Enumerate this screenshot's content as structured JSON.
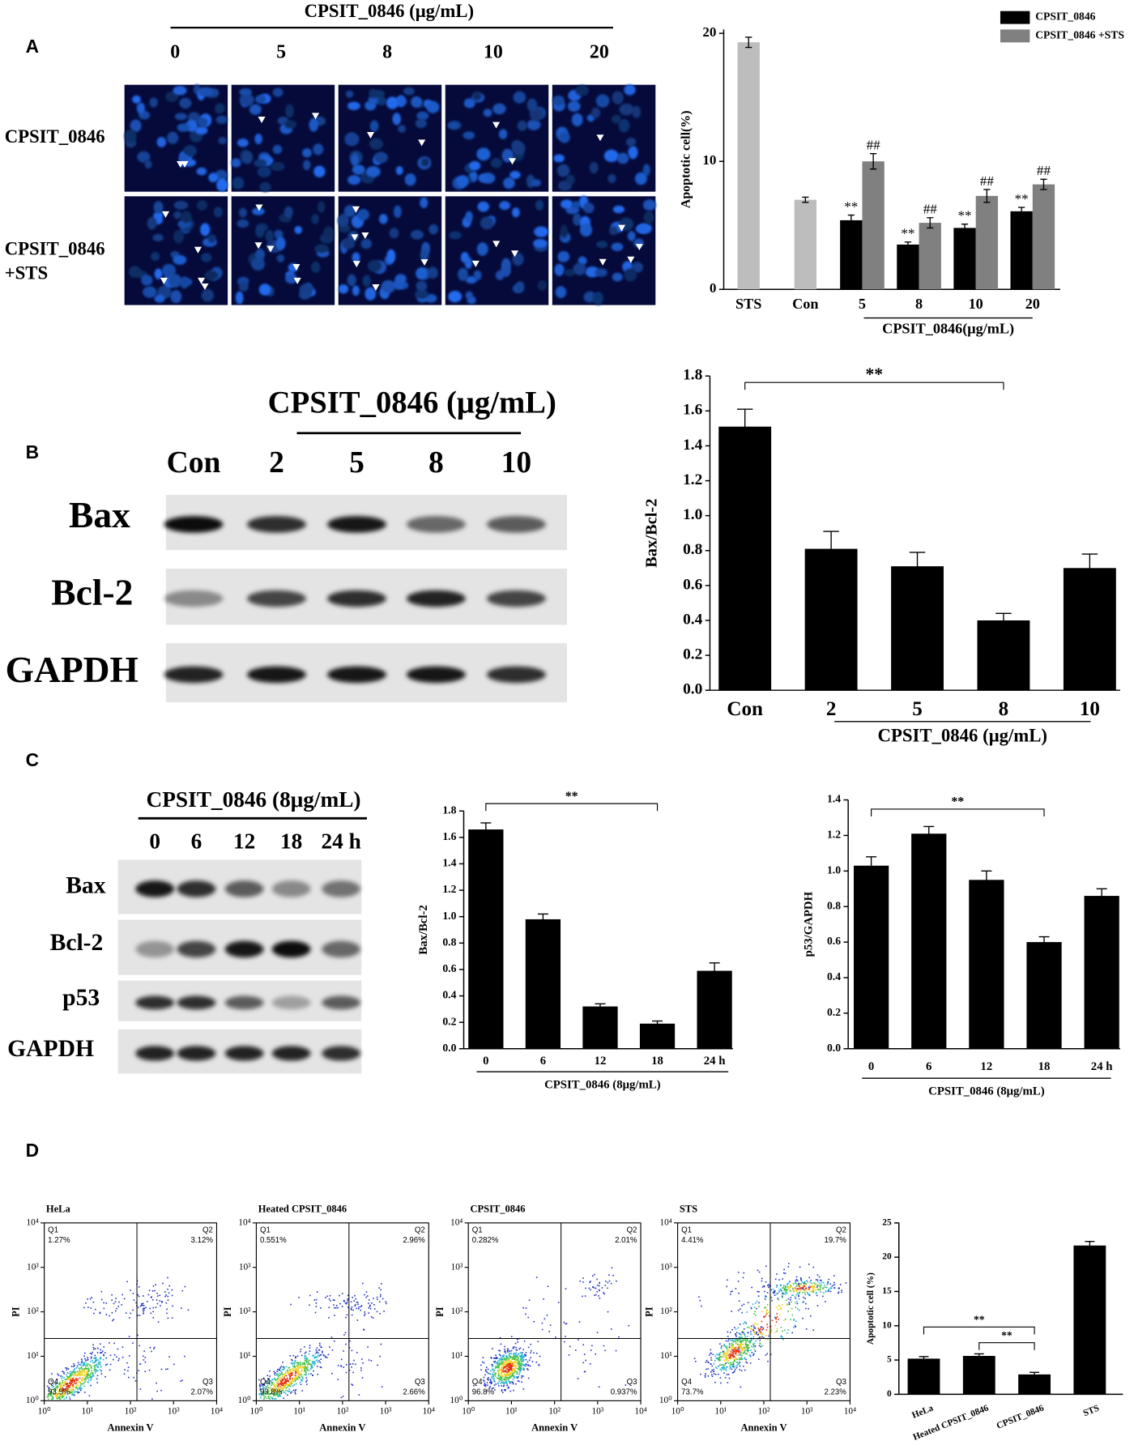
{
  "figure": {
    "panels": [
      "A",
      "B",
      "C",
      "D"
    ],
    "microscopy": {
      "title": "CPSIT_0846 (μg/mL)",
      "columns": [
        "0",
        "5",
        "8",
        "10",
        "20"
      ],
      "rows": [
        [
          "CPSIT_0846"
        ],
        [
          "CPSIT_0846",
          "+STS"
        ]
      ]
    },
    "blot_B": {
      "title": "CPSIT_0846  (μg/mL)",
      "lanes": [
        "Con",
        "2",
        "5",
        "8",
        "10"
      ],
      "rows": [
        "Bax",
        "Bcl-2",
        "GAPDH"
      ]
    },
    "blot_C": {
      "title": "CPSIT_0846 (8μg/mL)",
      "lanes": [
        "0",
        "6",
        "12",
        "18",
        "24 h"
      ],
      "rows": [
        "Bax",
        "Bcl-2",
        "p53",
        "GAPDH"
      ]
    }
  },
  "chart_data": [
    {
      "type": "grouped_bar",
      "y_label": "Apoptotic cell(%)",
      "x_label": "CPSIT_0846(μg/mL)",
      "categories": [
        "STS",
        "Con",
        "5",
        "8",
        "10",
        "20"
      ],
      "series": [
        {
          "name": "CPSIT_0846",
          "color": "#000000",
          "values": [
            null,
            null,
            5.4,
            3.5,
            4.8,
            6.1
          ],
          "errors": [
            null,
            null,
            0.4,
            0.2,
            0.3,
            0.3
          ],
          "marks": [
            null,
            null,
            "**",
            "**",
            "**",
            "**"
          ]
        },
        {
          "name": "CPSIT_0846 +STS",
          "color": "#808080",
          "values": [
            null,
            null,
            10.0,
            5.2,
            7.3,
            8.2
          ],
          "errors": [
            null,
            null,
            0.6,
            0.4,
            0.5,
            0.4
          ],
          "marks": [
            null,
            null,
            "##",
            "##",
            "##",
            "##"
          ]
        },
        {
          "color": "#bdbdbd",
          "values": [
            19.3,
            7.0,
            null,
            null,
            null,
            null
          ],
          "errors": [
            0.4,
            0.2,
            null,
            null,
            null,
            null
          ]
        }
      ],
      "ylim": [
        0,
        20.3
      ],
      "yticks": [
        0,
        10,
        20
      ],
      "legend": "top-right"
    },
    {
      "type": "bar",
      "y_label": "Bax/Bcl-2",
      "x_label": "CPSIT_0846 (μg/mL)",
      "categories": [
        "Con",
        "2",
        "5",
        "8",
        "10"
      ],
      "values": [
        1.51,
        0.81,
        0.71,
        0.4,
        0.7
      ],
      "errors": [
        0.1,
        0.1,
        0.08,
        0.04,
        0.08
      ],
      "color": "#000000",
      "ylim": [
        0,
        1.8
      ],
      "yticks": [
        {
          "value": 0,
          "label": "0.0"
        },
        0.2,
        0.4,
        0.6,
        0.8,
        {
          "value": 1,
          "label": "1.0"
        },
        1.2,
        1.4,
        1.6,
        1.8
      ],
      "comparisons": [
        {
          "from": 0,
          "to": 3,
          "label": "**"
        }
      ]
    },
    {
      "type": "bar",
      "y_label": "Bax/Bcl-2",
      "x_label": "CPSIT_0846 (8μg/mL)",
      "categories": [
        "0",
        "6",
        "12",
        "18",
        "24 h"
      ],
      "values": [
        1.66,
        0.98,
        0.32,
        0.19,
        0.59
      ],
      "errors": [
        0.05,
        0.04,
        0.02,
        0.02,
        0.06
      ],
      "color": "#000000",
      "ylim": [
        0,
        1.8
      ],
      "yticks": [
        {
          "value": 0,
          "label": "0.0"
        },
        0.2,
        0.4,
        0.6,
        0.8,
        {
          "value": 1,
          "label": "1.0"
        },
        1.2,
        1.4,
        1.6,
        1.8
      ],
      "comparisons": [
        {
          "from": 0,
          "to": 3,
          "label": "**"
        }
      ]
    },
    {
      "type": "bar",
      "y_label": "p53/GAPDH",
      "x_label": "CPSIT_0846 (8μg/mL)",
      "categories": [
        "0",
        "6",
        "12",
        "18",
        "24 h"
      ],
      "values": [
        1.03,
        1.21,
        0.95,
        0.6,
        0.86
      ],
      "errors": [
        0.05,
        0.04,
        0.05,
        0.03,
        0.04
      ],
      "color": "#000000",
      "ylim": [
        0,
        1.4
      ],
      "yticks": [
        {
          "value": 0,
          "label": "0.0"
        },
        0.2,
        0.4,
        0.6,
        0.8,
        {
          "value": 1,
          "label": "1.0"
        },
        1.2,
        1.4
      ],
      "comparisons": [
        {
          "from": 0,
          "to": 3,
          "label": "**"
        }
      ]
    },
    {
      "type": "flow",
      "title": "HeLa",
      "x_label": "Annexin V",
      "y_label": "PI",
      "log_scale": true,
      "xlim": [
        1,
        10000
      ],
      "ylim": [
        1,
        10000
      ],
      "xticks": [
        {
          "value": 1,
          "label": "10⁰"
        },
        {
          "value": 10,
          "label": "10¹"
        },
        {
          "value": 100,
          "label": "10²"
        },
        {
          "value": 1000,
          "label": "10³"
        },
        {
          "value": 10000,
          "label": "10⁴"
        }
      ],
      "yticks": [
        {
          "value": 1,
          "label": "10⁰"
        },
        {
          "value": 10,
          "label": "10¹"
        },
        {
          "value": 100,
          "label": "10²"
        },
        {
          "value": 1000,
          "label": "10³"
        },
        {
          "value": 10000,
          "label": "10⁴"
        }
      ],
      "quadrants": [
        {
          "name": "Q1",
          "percent": "1.27%"
        },
        {
          "name": "Q2",
          "percent": "3.12%"
        },
        {
          "name": "Q3",
          "percent": "2.07%"
        },
        {
          "name": "Q4",
          "percent": "93.5%"
        }
      ]
    },
    {
      "type": "flow",
      "title": "Heated CPSIT_0846",
      "x_label": "Annexin V",
      "y_label": "PI",
      "log_scale": true,
      "xlim": [
        1,
        10000
      ],
      "ylim": [
        1,
        10000
      ],
      "xticks": [
        {
          "value": 1,
          "label": "10⁰"
        },
        {
          "value": 10,
          "label": "10¹"
        },
        {
          "value": 100,
          "label": "10²"
        },
        {
          "value": 1000,
          "label": "10³"
        },
        {
          "value": 10000,
          "label": "10⁴"
        }
      ],
      "yticks": [
        {
          "value": 1,
          "label": "10⁰"
        },
        {
          "value": 10,
          "label": "10¹"
        },
        {
          "value": 100,
          "label": "10²"
        },
        {
          "value": 1000,
          "label": "10³"
        },
        {
          "value": 10000,
          "label": "10⁴"
        }
      ],
      "quadrants": [
        {
          "name": "Q1",
          "percent": "0.551%"
        },
        {
          "name": "Q2",
          "percent": "2.96%"
        },
        {
          "name": "Q3",
          "percent": "2.66%"
        },
        {
          "name": "Q4",
          "percent": "93.8%"
        }
      ]
    },
    {
      "type": "flow",
      "title": "CPSIT_0846",
      "x_label": "Annexin V",
      "y_label": "PI",
      "log_scale": true,
      "xlim": [
        1,
        10000
      ],
      "ylim": [
        1,
        10000
      ],
      "xticks": [
        {
          "value": 1,
          "label": "10⁰"
        },
        {
          "value": 10,
          "label": "10¹"
        },
        {
          "value": 100,
          "label": "10²"
        },
        {
          "value": 1000,
          "label": "10³"
        },
        {
          "value": 10000,
          "label": "10⁴"
        }
      ],
      "yticks": [
        {
          "value": 1,
          "label": "10⁰"
        },
        {
          "value": 10,
          "label": "10¹"
        },
        {
          "value": 100,
          "label": "10²"
        },
        {
          "value": 1000,
          "label": "10³"
        },
        {
          "value": 10000,
          "label": "10⁴"
        }
      ],
      "quadrants": [
        {
          "name": "Q1",
          "percent": "0.282%"
        },
        {
          "name": "Q2",
          "percent": "2.01%"
        },
        {
          "name": "Q3",
          "percent": "0.937%"
        },
        {
          "name": "Q4",
          "percent": "96.8%"
        }
      ]
    },
    {
      "type": "flow",
      "title": "STS",
      "x_label": "Annexin V",
      "y_label": "PI",
      "log_scale": true,
      "xlim": [
        1,
        10000
      ],
      "ylim": [
        1,
        10000
      ],
      "xticks": [
        {
          "value": 1,
          "label": "10⁰"
        },
        {
          "value": 10,
          "label": "10¹"
        },
        {
          "value": 100,
          "label": "10²"
        },
        {
          "value": 1000,
          "label": "10³"
        },
        {
          "value": 10000,
          "label": "10⁴"
        }
      ],
      "yticks": [
        {
          "value": 1,
          "label": "10⁰"
        },
        {
          "value": 10,
          "label": "10¹"
        },
        {
          "value": 100,
          "label": "10²"
        },
        {
          "value": 1000,
          "label": "10³"
        },
        {
          "value": 10000,
          "label": "10⁴"
        }
      ],
      "quadrants": [
        {
          "name": "Q1",
          "percent": "4.41%"
        },
        {
          "name": "Q2",
          "percent": "19.7%"
        },
        {
          "name": "Q3",
          "percent": "2.23%"
        },
        {
          "name": "Q4",
          "percent": "73.7%"
        }
      ]
    },
    {
      "type": "bar",
      "y_label": "Apoptotic cell (%)",
      "categories": [
        "HeLa",
        "Heated CPSIT_0846",
        "CPSIT_0846",
        "STS"
      ],
      "values": [
        5.2,
        5.6,
        2.9,
        21.7
      ],
      "errors": [
        0.3,
        0.3,
        0.3,
        0.6
      ],
      "color": "#000000",
      "ylim": [
        0,
        25
      ],
      "yticks": [
        0,
        5,
        10,
        15,
        20,
        25
      ],
      "comparisons": [
        {
          "from": 0,
          "to": 2,
          "label": "**"
        },
        {
          "from": 1,
          "to": 2,
          "label": "**"
        }
      ]
    }
  ]
}
